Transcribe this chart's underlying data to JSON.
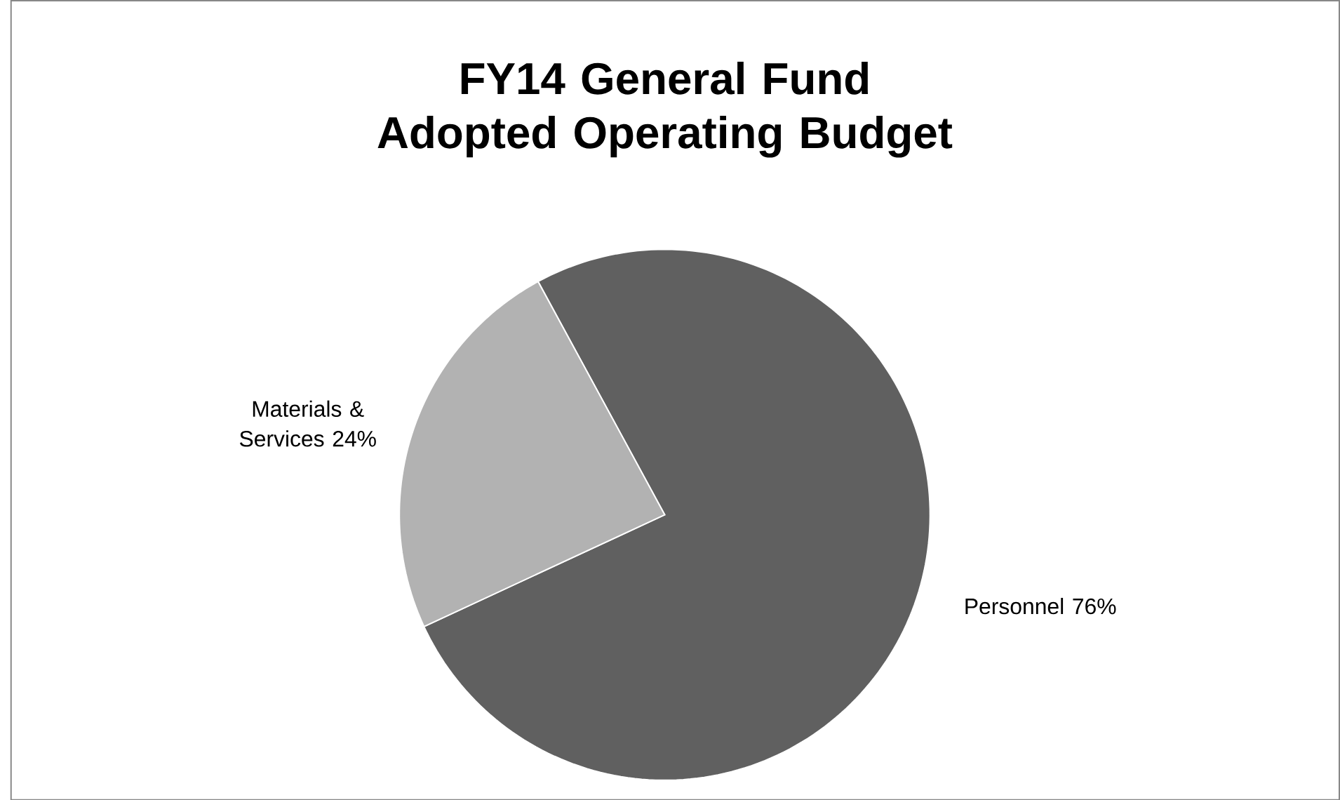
{
  "chart_data": {
    "type": "pie",
    "title": "FY14 General Fund Adopted Operating Budget",
    "categories": [
      "Personnel",
      "Materials & Services"
    ],
    "values": [
      76,
      24
    ],
    "value_labels": [
      "76%",
      "24%"
    ],
    "colors": [
      "#606060",
      "#b2b2b2"
    ]
  }
}
